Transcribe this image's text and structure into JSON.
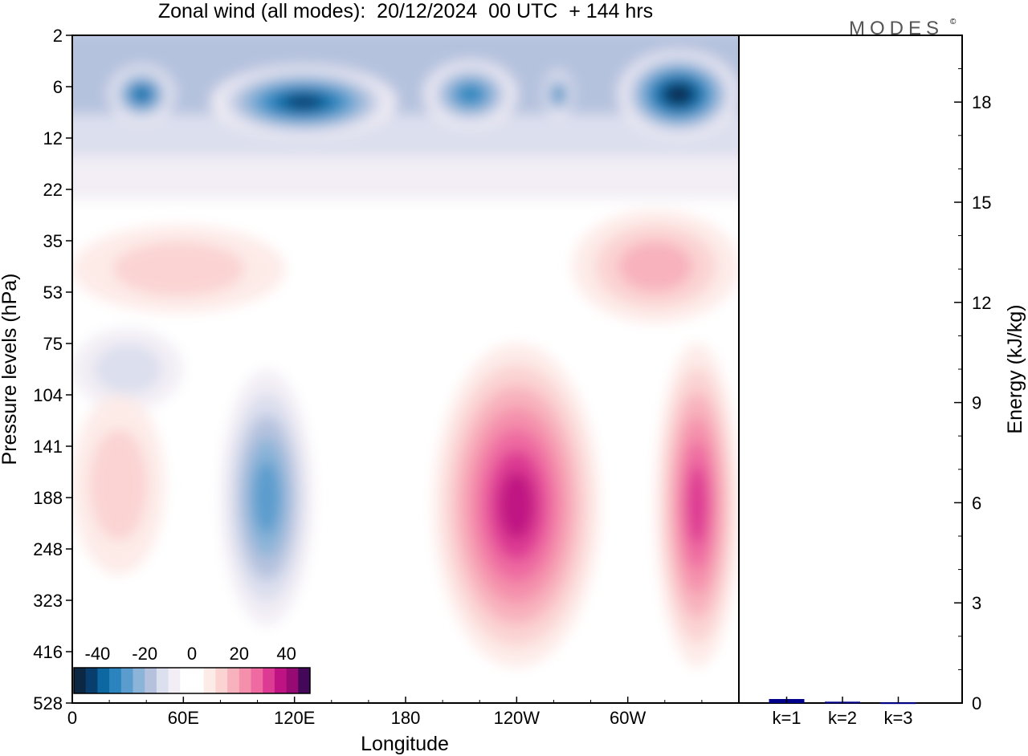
{
  "chart_data": [
    {
      "type": "heatmap",
      "title": "Zonal wind (all modes):  20/12/2024  00 UTC  + 144 hrs",
      "xlabel": "Longitude",
      "ylabel": "Pressure levels (hPa)",
      "x_ticks": [
        "0",
        "60E",
        "120E",
        "180",
        "120W",
        "60W"
      ],
      "x_tick_values": [
        0,
        60,
        120,
        180,
        240,
        300
      ],
      "xlim": [
        0,
        360
      ],
      "y_ticks": [
        "2",
        "6",
        "12",
        "22",
        "35",
        "53",
        "75",
        "104",
        "141",
        "188",
        "248",
        "323",
        "416",
        "528"
      ],
      "y_scale": "categorical-levels",
      "colorbar": {
        "ticks": [
          "-40",
          "-20",
          "0",
          "20",
          "40"
        ],
        "tick_values": [
          -40,
          -20,
          0,
          20,
          40
        ],
        "range": [
          -50,
          50
        ],
        "colors": [
          "#0c2744",
          "#083e6e",
          "#0d67a1",
          "#2b84bd",
          "#5a9ccd",
          "#8bb4d8",
          "#b5c2de",
          "#dcdfee",
          "#f3eef5",
          "#fdebe8",
          "#fbd3d3",
          "#f8b2bd",
          "#f490ac",
          "#ee6aa1",
          "#dd3b93",
          "#c01383",
          "#970a73",
          "#6c0a66",
          "#43085a"
        ],
        "cells": [
          {
            "lo": -50,
            "hi": -45,
            "c": "#0c2744"
          },
          {
            "lo": -45,
            "hi": -40,
            "c": "#083e6e"
          },
          {
            "lo": -40,
            "hi": -35,
            "c": "#0d67a1"
          },
          {
            "lo": -35,
            "hi": -30,
            "c": "#2b84bd"
          },
          {
            "lo": -30,
            "hi": -25,
            "c": "#5a9ccd"
          },
          {
            "lo": -25,
            "hi": -20,
            "c": "#8bb4d8"
          },
          {
            "lo": -20,
            "hi": -15,
            "c": "#b5c2de"
          },
          {
            "lo": -15,
            "hi": -10,
            "c": "#dcdfee"
          },
          {
            "lo": -10,
            "hi": -5,
            "c": "#f3eef5"
          },
          {
            "lo": -5,
            "hi": 0,
            "c": "#ffffff"
          },
          {
            "lo": 0,
            "hi": 5,
            "c": "#ffffff"
          },
          {
            "lo": 5,
            "hi": 10,
            "c": "#fdebe8"
          },
          {
            "lo": 10,
            "hi": 15,
            "c": "#fbd3d3"
          },
          {
            "lo": 15,
            "hi": 20,
            "c": "#f8b2bd"
          },
          {
            "lo": 20,
            "hi": 25,
            "c": "#f490ac"
          },
          {
            "lo": 25,
            "hi": 30,
            "c": "#ee6aa1"
          },
          {
            "lo": 30,
            "hi": 35,
            "c": "#dd3b93"
          },
          {
            "lo": 35,
            "hi": 40,
            "c": "#c01383"
          },
          {
            "lo": 40,
            "hi": 45,
            "c": "#970a73"
          },
          {
            "lo": 45,
            "hi": 50,
            "c": "#43085a"
          }
        ]
      },
      "background_value": 3,
      "features": [
        {
          "kind": "upper-easterly",
          "lon": [
            0,
            360
          ],
          "level": [
            0.2,
            3.2
          ],
          "peak": -18
        },
        {
          "kind": "core",
          "lon": [
            20,
            55
          ],
          "level": [
            0.6,
            1.7
          ],
          "peak": -38
        },
        {
          "kind": "core",
          "lon": [
            75,
            175
          ],
          "level": [
            0.6,
            2.0
          ],
          "peak": -40
        },
        {
          "kind": "core",
          "lon": [
            190,
            240
          ],
          "level": [
            0.5,
            1.8
          ],
          "peak": -34
        },
        {
          "kind": "core",
          "lon": [
            255,
            270
          ],
          "level": [
            0.7,
            1.6
          ],
          "peak": -32
        },
        {
          "kind": "core",
          "lon": [
            295,
            360
          ],
          "level": [
            0.3,
            2.0
          ],
          "peak": -46
        },
        {
          "kind": "weak-westerly",
          "lon": [
            0,
            115
          ],
          "level": [
            3.7,
            5.4
          ],
          "peak": 12
        },
        {
          "kind": "weak-westerly",
          "lon": [
            270,
            360
          ],
          "level": [
            3.4,
            5.6
          ],
          "peak": 15
        },
        {
          "kind": "weak-easterly",
          "lon": [
            0,
            60
          ],
          "level": [
            5.7,
            7.3
          ],
          "peak": -12
        },
        {
          "kind": "easterly-trough",
          "lon": [
            80,
            130
          ],
          "level": [
            6.5,
            11.5
          ],
          "peak": -26
        },
        {
          "kind": "westerly-jet",
          "lon": [
            195,
            285
          ],
          "level": [
            6.0,
            12.3
          ],
          "peak": 38
        },
        {
          "kind": "westerly-jet",
          "lon": [
            315,
            360
          ],
          "level": [
            6.0,
            12.3
          ],
          "peak": 32
        },
        {
          "kind": "westerly",
          "lon": [
            0,
            50
          ],
          "level": [
            7.0,
            10.5
          ],
          "peak": 14
        }
      ]
    },
    {
      "type": "bar",
      "ylabel": "Energy (kJ/kg)",
      "categories": [
        "k=1",
        "k=2",
        "k=3"
      ],
      "values": [
        0.12,
        0.04,
        0.02
      ],
      "ylim": [
        0,
        20
      ],
      "y_ticks": [
        "0",
        "3",
        "6",
        "9",
        "12",
        "15",
        "18"
      ],
      "y_tick_values": [
        0,
        3,
        6,
        9,
        12,
        15,
        18
      ],
      "bar_color": "#00008b"
    }
  ],
  "logo": {
    "text": "MODES",
    "mark": "©"
  }
}
